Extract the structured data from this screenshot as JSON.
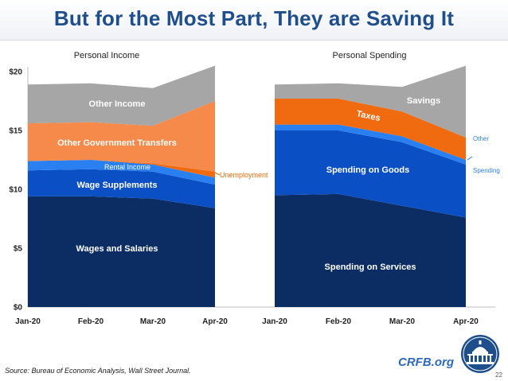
{
  "title": "But for the Most Part, They are Saving It",
  "source": "Source: Bureau of Economic Analysis, Wall Street Journal.",
  "site": "CRFB.org",
  "page_number": "22",
  "colors": {
    "navy": "#0c2d63",
    "blue": "#0a4fc4",
    "light_blue": "#2a80f0",
    "orange": "#f58a4a",
    "dark_orange": "#f06a0f",
    "gray": "#a6a6a6",
    "title": "#1f4e8c",
    "label_orange": "#e46c0a",
    "label_blue": "#2f7fd8"
  },
  "chart_data": [
    {
      "type": "area",
      "stacked": true,
      "title": "Personal Income",
      "categories": [
        "Jan-20",
        "Feb-20",
        "Mar-20",
        "Apr-20"
      ],
      "ylim": [
        0,
        20
      ],
      "yticks": [
        "$0",
        "$5",
        "$10",
        "$15",
        "$20"
      ],
      "series": [
        {
          "name": "Wages and Salaries",
          "values": [
            9.4,
            9.4,
            9.2,
            8.4
          ],
          "color": "#0c2d63"
        },
        {
          "name": "Wage Supplements",
          "values": [
            2.2,
            2.3,
            2.3,
            2.0
          ],
          "color": "#0a4fc4"
        },
        {
          "name": "Rental Income",
          "values": [
            0.8,
            0.8,
            0.6,
            0.6
          ],
          "color": "#2a80f0"
        },
        {
          "name": "Unemployment",
          "values": [
            0.0,
            0.0,
            0.1,
            0.5
          ],
          "color": "#f06a0f"
        },
        {
          "name": "Other Government Transfers",
          "values": [
            3.2,
            3.2,
            3.2,
            6.0
          ],
          "color": "#f58a4a"
        },
        {
          "name": "Other Income",
          "values": [
            3.3,
            3.3,
            3.2,
            3.0
          ],
          "color": "#a6a6a6"
        }
      ]
    },
    {
      "type": "area",
      "stacked": true,
      "title": "Personal Spending",
      "categories": [
        "Jan-20",
        "Feb-20",
        "Mar-20",
        "Apr-20"
      ],
      "ylim": [
        0,
        20
      ],
      "series": [
        {
          "name": "Spending on Services",
          "values": [
            9.5,
            9.6,
            8.6,
            7.6
          ],
          "color": "#0c2d63"
        },
        {
          "name": "Spending on Goods",
          "values": [
            5.5,
            5.4,
            5.4,
            4.5
          ],
          "color": "#0a4fc4"
        },
        {
          "name": "Other Spending",
          "values": [
            0.5,
            0.5,
            0.5,
            0.4
          ],
          "color": "#2a80f0"
        },
        {
          "name": "Taxes",
          "values": [
            2.2,
            2.2,
            2.1,
            1.9
          ],
          "color": "#f06a0f"
        },
        {
          "name": "Savings",
          "values": [
            1.2,
            1.3,
            2.1,
            6.1
          ],
          "color": "#a6a6a6"
        }
      ]
    }
  ],
  "labels": {
    "other_income": "Other Income",
    "other_gov_transfers": "Other Government Transfers",
    "rental_income": "Rental Income",
    "wage_supplements": "Wage Supplements",
    "wages_and_salaries": "Wages and Salaries",
    "unemployment": "Unemployment",
    "savings": "Savings",
    "taxes": "Taxes",
    "spending_on_goods": "Spending on Goods",
    "spending_on_services": "Spending on Services",
    "other_spending_line1": "Other",
    "other_spending_line2": "Spending"
  }
}
